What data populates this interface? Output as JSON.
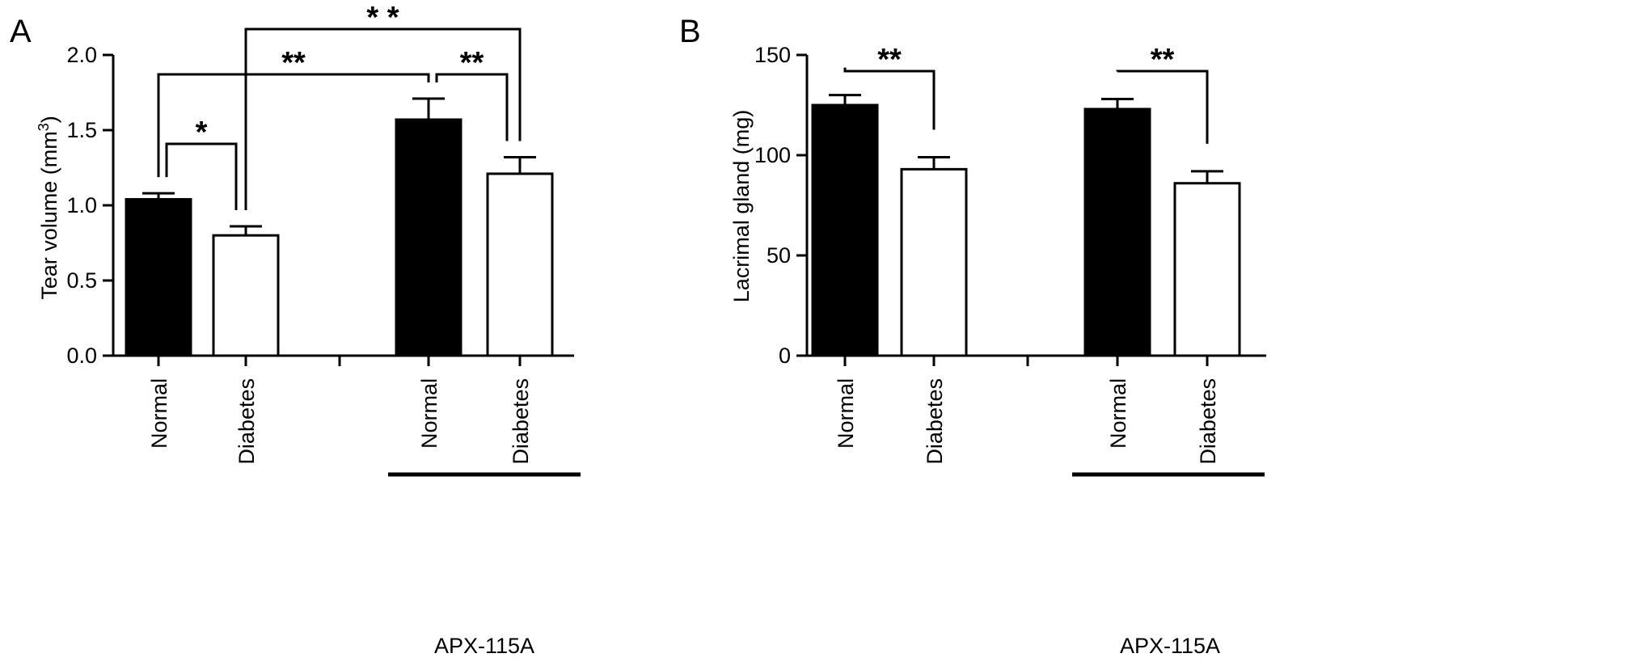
{
  "chart_data": [
    {
      "panel_label": "A",
      "type": "bar",
      "ylabel_main": "Tear volume (mm",
      "ylabel_sup": "3",
      "ylabel_close": ")",
      "ylim": [
        0,
        2.0
      ],
      "yticks": [
        0.0,
        0.5,
        1.0,
        1.5,
        2.0
      ],
      "ytick_labels": [
        "0.0",
        "0.5",
        "1.0",
        "1.5",
        "2.0"
      ],
      "categories": [
        "Normal",
        "Diabetes",
        "Normal",
        "Diabetes"
      ],
      "values": [
        1.04,
        0.8,
        1.57,
        1.21
      ],
      "errors": [
        0.04,
        0.06,
        0.14,
        0.11
      ],
      "fill": [
        "#000000",
        "#ffffff",
        "#000000",
        "#ffffff"
      ],
      "group_label": "APX-115A",
      "significance": [
        {
          "from": 0,
          "to": 1,
          "label": "*"
        },
        {
          "from": 2,
          "to": 3,
          "label": "**"
        },
        {
          "from": 0,
          "to": 2,
          "label": "**"
        },
        {
          "from": 1,
          "to": 3,
          "label": "* *"
        }
      ]
    },
    {
      "panel_label": "B",
      "type": "bar",
      "ylabel_main": "Lacrimal gland (mg)",
      "ylabel_sup": "",
      "ylabel_close": "",
      "ylim": [
        0,
        150
      ],
      "yticks": [
        0,
        50,
        100,
        150
      ],
      "ytick_labels": [
        "0",
        "50",
        "100",
        "150"
      ],
      "categories": [
        "Normal",
        "Diabetes",
        "Normal",
        "Diabetes"
      ],
      "values": [
        125,
        93,
        123,
        86
      ],
      "errors": [
        5,
        6,
        5,
        6
      ],
      "fill": [
        "#000000",
        "#ffffff",
        "#000000",
        "#ffffff"
      ],
      "group_label": "APX-115A",
      "significance": [
        {
          "from": 0,
          "to": 1,
          "label": "**"
        },
        {
          "from": 2,
          "to": 3,
          "label": "**"
        }
      ]
    }
  ]
}
